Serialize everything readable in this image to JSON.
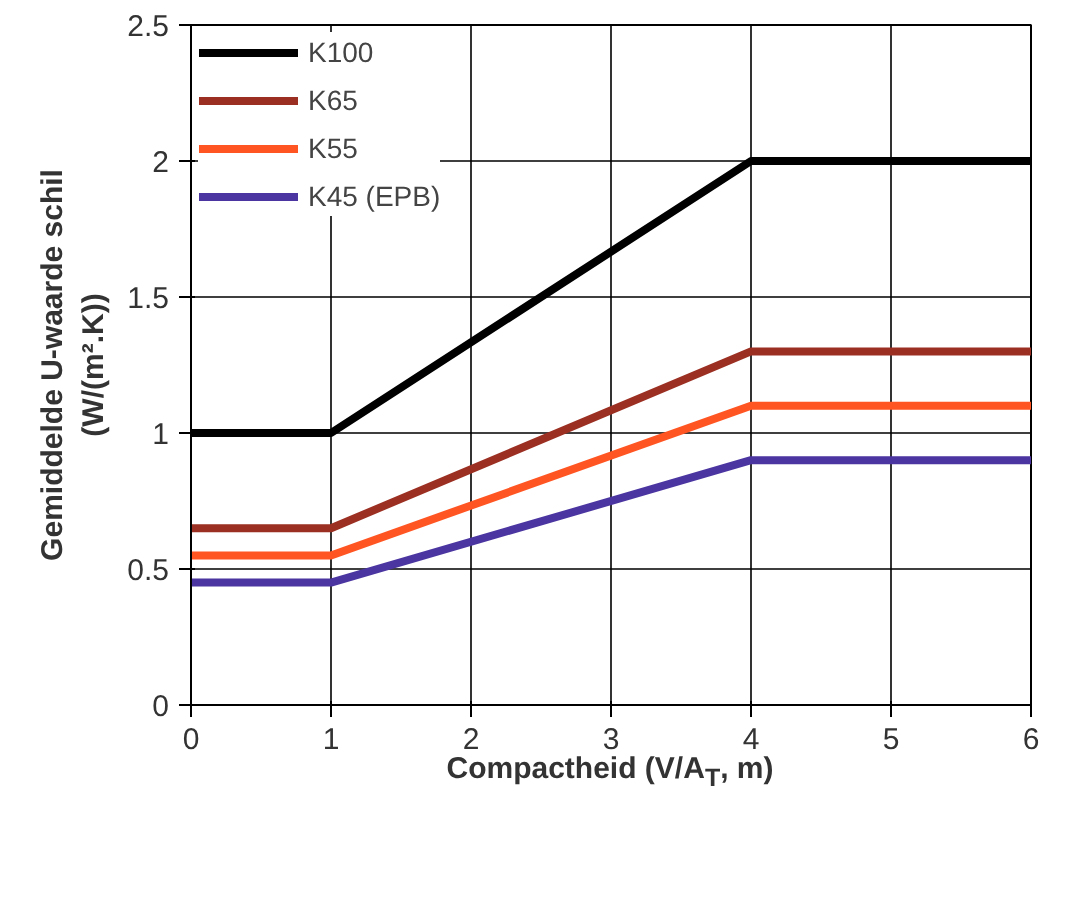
{
  "chart_data": {
    "type": "line",
    "xlabel": "Compactheid (V/A$_{T}$, m)",
    "ylabel": "Gemiddelde U-waarde schil\n(W/(m².K))",
    "x": [
      0,
      1,
      4,
      6
    ],
    "series": [
      {
        "name": "K100",
        "color": "#000000",
        "values": [
          1,
          1,
          2,
          2
        ]
      },
      {
        "name": "K65",
        "color": "#9b2f22",
        "values": [
          0.65,
          0.65,
          1.3,
          1.3
        ]
      },
      {
        "name": "K55",
        "color": "#ff5522",
        "values": [
          0.55,
          0.55,
          1.1,
          1.1
        ]
      },
      {
        "name": "K45 (EPB)",
        "color": "#4b35a0",
        "values": [
          0.45,
          0.45,
          0.9,
          0.9
        ]
      }
    ],
    "xlim": [
      0,
      6
    ],
    "ylim": [
      0,
      2.5
    ],
    "xticks": [
      0,
      1,
      2,
      3,
      4,
      5,
      6
    ],
    "yticks": [
      0,
      0.5,
      1,
      1.5,
      2,
      2.5
    ],
    "grid": true,
    "legend": "top left",
    "marker": "none",
    "line_style": "solid"
  }
}
